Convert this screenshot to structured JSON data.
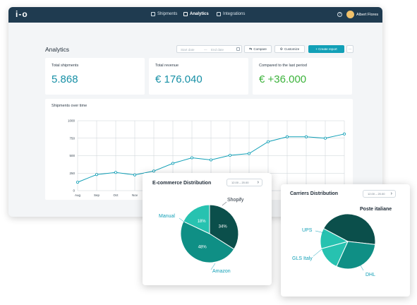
{
  "app": {
    "logo": "i-o",
    "nav": [
      {
        "label": "Shipments",
        "active": false
      },
      {
        "label": "Analytics",
        "active": true
      },
      {
        "label": "Integrations",
        "active": false
      }
    ],
    "help_icon": "question-icon",
    "user_name": "Albert Flores"
  },
  "toolbar": {
    "page_title": "Analytics",
    "start_placeholder": "Start date",
    "end_placeholder": "End date",
    "separator": "—",
    "compare_label": "Compare",
    "customize_label": "Customize",
    "create_report_label": "+ Create report",
    "more_label": "···"
  },
  "kpis": [
    {
      "label": "Total shipments",
      "value": "5.868"
    },
    {
      "label": "Total revenue",
      "value": "€ 176.040"
    },
    {
      "label": "Compared to the last period",
      "value": "€ +36.000"
    }
  ],
  "colors": {
    "accent": "#12a0b7",
    "navbar": "#1f3b50",
    "positive": "#3cb33b",
    "pie_dark": "#0b4f4b",
    "pie_mid": "#0f8f85",
    "pie_light": "#27c2b0"
  },
  "line_chart": {
    "title": "Shipments over time",
    "chart_data": {
      "type": "line",
      "ylim": [
        0,
        1000
      ],
      "yticks": [
        "0",
        "250",
        "500",
        "750",
        "1000"
      ],
      "xticks": [
        "Aug",
        "Sep",
        "Oct",
        "Nov"
      ],
      "values": [
        120,
        230,
        260,
        225,
        280,
        390,
        470,
        440,
        505,
        530,
        700,
        770,
        770,
        750,
        810
      ]
    }
  },
  "ecommerce": {
    "title": "E-commerce Distribution",
    "select_value": "12.00 – 20.00",
    "chart_data": {
      "type": "pie",
      "slices": [
        {
          "label": "Shopify",
          "value": 34,
          "pct_label": "34%"
        },
        {
          "label": "Amazon",
          "value": 48,
          "pct_label": "48%"
        },
        {
          "label": "Manual",
          "value": 18,
          "pct_label": "18%"
        }
      ]
    }
  },
  "carriers": {
    "title": "Carriers Distribution",
    "select_value": "12.00 – 20.00",
    "chart_data": {
      "type": "pie",
      "slices": [
        {
          "label": "Poste italiane",
          "value": 44
        },
        {
          "label": "DHL",
          "value": 30
        },
        {
          "label": "GLS Italy",
          "value": 14
        },
        {
          "label": "UPS",
          "value": 12
        }
      ]
    }
  }
}
